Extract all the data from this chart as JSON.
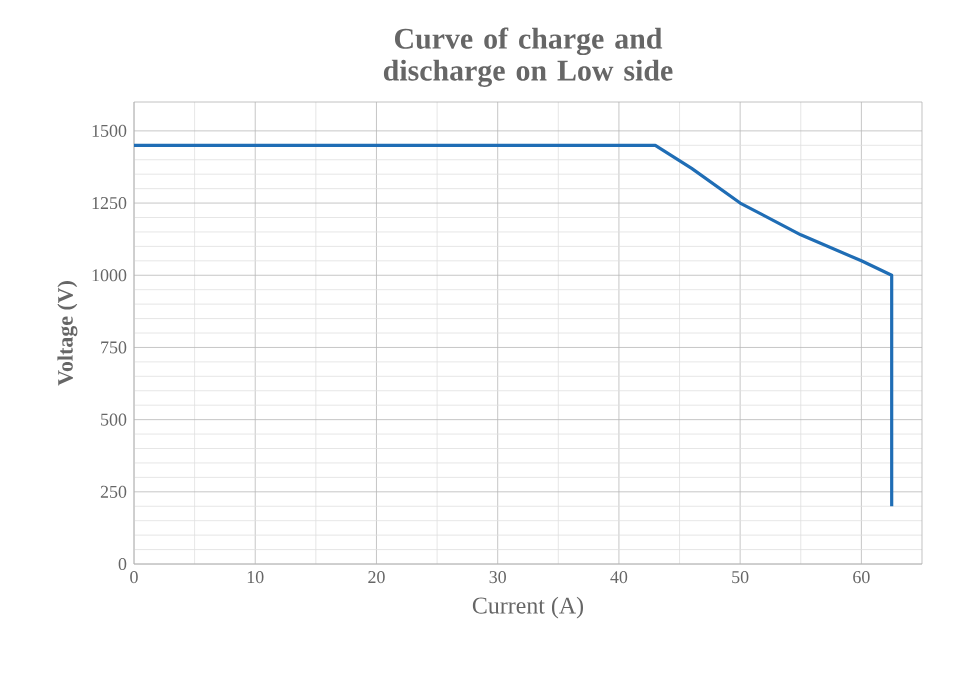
{
  "chart_data": {
    "type": "line",
    "title": "Curve of charge and discharge on Low side",
    "xlabel": "Current (A)",
    "ylabel": "Voltage (V)",
    "x": [
      0,
      43,
      46,
      50,
      55,
      60,
      62.5,
      62.5
    ],
    "series": [
      {
        "color": "#1f6db5",
        "values": [
          1450,
          1450,
          1370,
          1250,
          1140,
          1050,
          1000,
          200
        ]
      }
    ],
    "xlim": [
      0,
      65
    ],
    "ylim": [
      0,
      1600
    ],
    "xticks": [
      0,
      10,
      20,
      30,
      40,
      50,
      60
    ],
    "yticks": [
      0,
      250,
      500,
      750,
      1000,
      1250,
      1500
    ],
    "grid": true,
    "marker": "none",
    "line_style": "solid"
  }
}
